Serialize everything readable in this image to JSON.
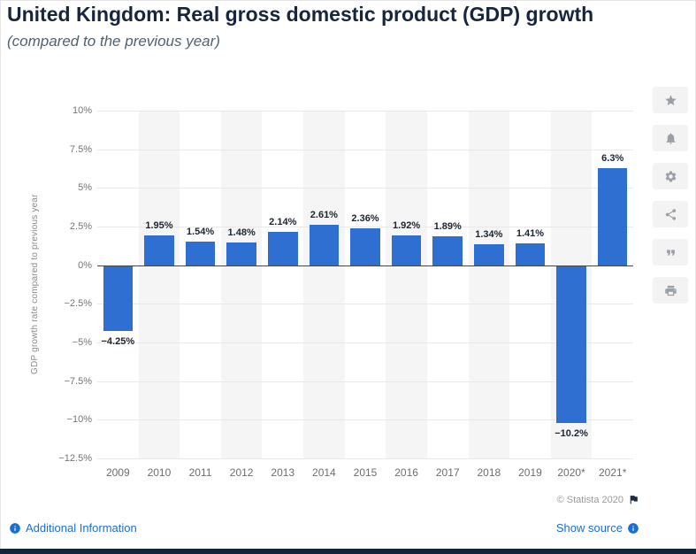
{
  "header": {
    "title": "United Kingdom: Real gross domestic product (GDP) growth",
    "subtitle": "(compared to the previous year)"
  },
  "chart_data": {
    "type": "bar",
    "title": "United Kingdom: Real gross domestic product (GDP) growth",
    "subtitle": "(compared to the previous year)",
    "categories": [
      "2009",
      "2010",
      "2011",
      "2012",
      "2013",
      "2014",
      "2015",
      "2016",
      "2017",
      "2018",
      "2019",
      "2020*",
      "2021*"
    ],
    "values": [
      -4.25,
      1.95,
      1.54,
      1.48,
      2.14,
      2.61,
      2.36,
      1.92,
      1.89,
      1.34,
      1.41,
      -10.2,
      6.3
    ],
    "value_labels": [
      "−4.25%",
      "1.95%",
      "1.54%",
      "1.48%",
      "2.14%",
      "2.61%",
      "2.36%",
      "1.92%",
      "1.89%",
      "1.34%",
      "1.41%",
      "−10.2%",
      "6.3%"
    ],
    "xlabel": "",
    "ylabel": "GDP growth rate compared to previous year",
    "ylim": [
      -12.5,
      10
    ],
    "yticks": [
      10,
      7.5,
      5,
      2.5,
      0,
      -2.5,
      -5,
      -7.5,
      -10,
      -12.5
    ],
    "ytick_labels": [
      "10%",
      "7.5%",
      "5%",
      "2.5%",
      "0%",
      "−2.5%",
      "−5%",
      "−7.5%",
      "−10%",
      "−12.5%"
    ],
    "grid": true,
    "legend": false,
    "bar_color": "#2f6fd1",
    "stripe_color": "#f5f5f5"
  },
  "toolbar": {
    "icons": [
      "star-icon",
      "bell-icon",
      "gear-icon",
      "share-icon",
      "quote-icon",
      "print-icon"
    ]
  },
  "footer": {
    "copyright": "© Statista 2020",
    "additional_information": "Additional Information",
    "show_source": "Show source"
  },
  "colors": {
    "bar": "#2f6fd1",
    "title": "#17263e",
    "link": "#1a6fd4",
    "bottom_bar": "#15253c"
  }
}
